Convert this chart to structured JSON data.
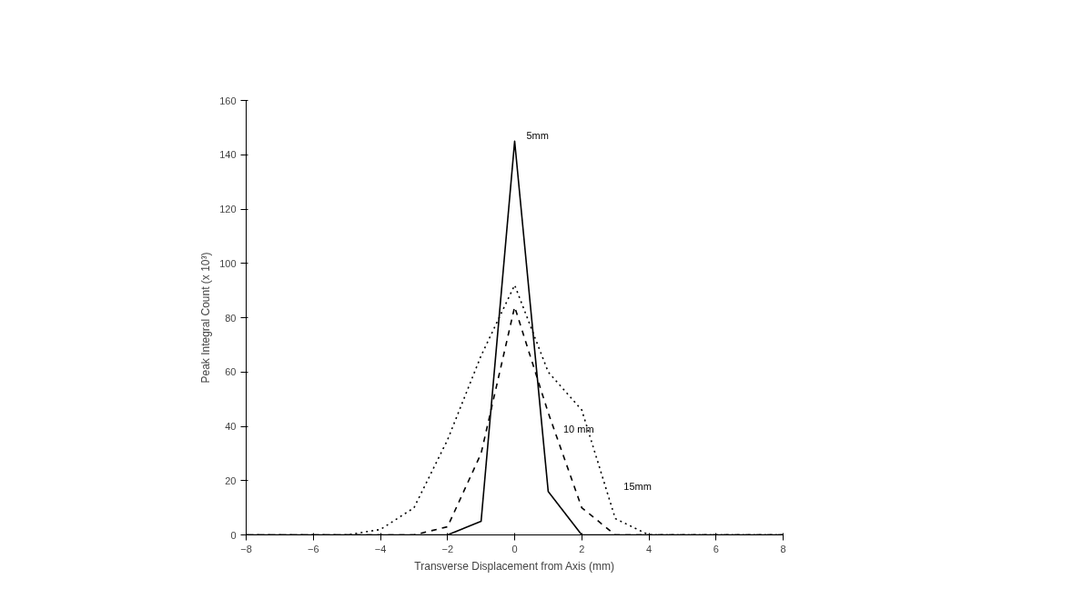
{
  "chart_data": {
    "type": "line",
    "xlabel": "Transverse Displacement from Axis (mm)",
    "ylabel": "Peak Integral Count (x 10³)",
    "x": [
      -8,
      -7,
      -6,
      -5,
      -4,
      -3,
      -2,
      -1,
      0,
      1,
      2,
      3,
      4,
      5,
      6,
      7,
      8
    ],
    "series": [
      {
        "name": "5mm",
        "color": "#000000",
        "line_style": "solid",
        "values": [
          0,
          0,
          0,
          0,
          0,
          0,
          0,
          5,
          145,
          16,
          0,
          0,
          0,
          0,
          0,
          0,
          0
        ]
      },
      {
        "name": "10 mm",
        "color": "#000000",
        "line_style": "dashed",
        "values": [
          0,
          0,
          0,
          0,
          0,
          0,
          3,
          30,
          84,
          45,
          10,
          0,
          0,
          0,
          0,
          0,
          0
        ]
      },
      {
        "name": "15mm",
        "color": "#000000",
        "line_style": "dotted",
        "values": [
          0,
          0,
          0,
          0,
          2,
          10,
          35,
          66,
          92,
          60,
          46,
          6,
          0,
          0,
          0,
          0,
          0
        ]
      }
    ],
    "xlim": [
      -8,
      8
    ],
    "ylim": [
      0,
      160
    ],
    "xticks": [
      -8,
      -6,
      -4,
      -2,
      0,
      2,
      4,
      6,
      8
    ],
    "yticks": [
      0,
      20,
      40,
      60,
      80,
      100,
      120,
      140,
      160
    ],
    "grid": false,
    "marker": "none"
  }
}
